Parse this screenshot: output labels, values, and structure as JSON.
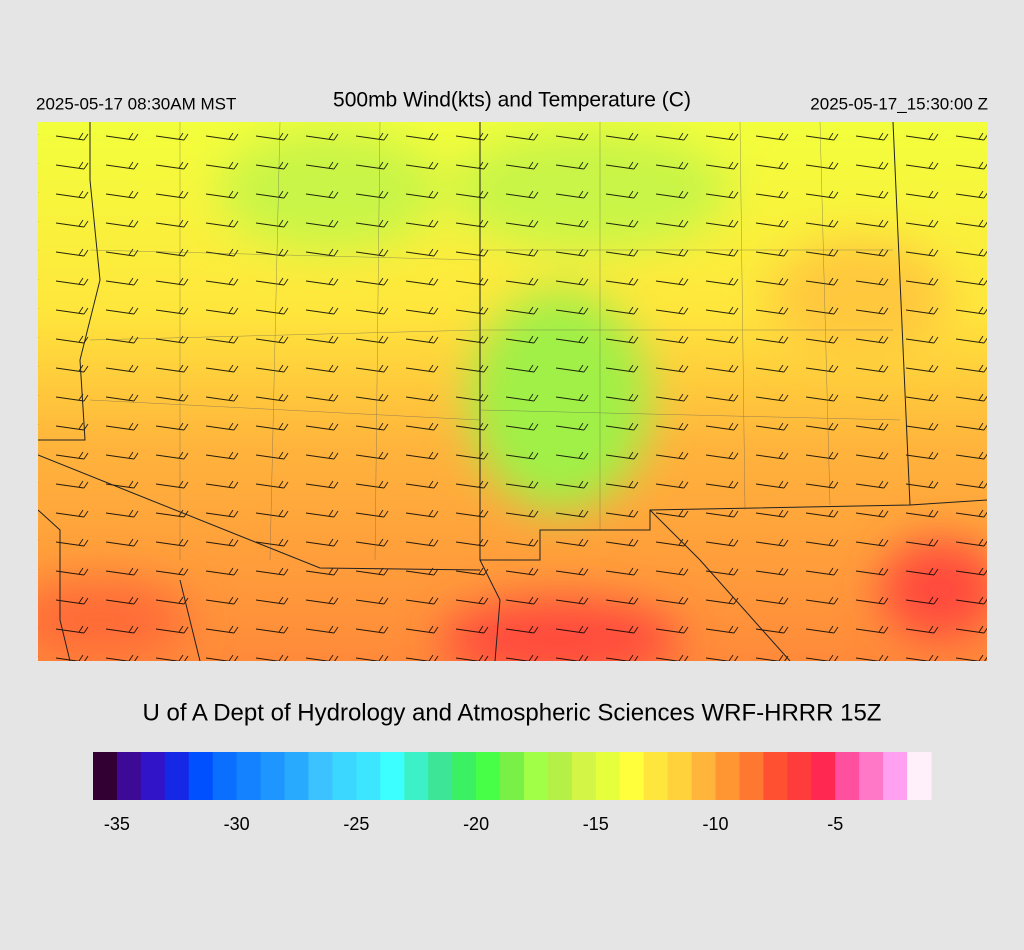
{
  "header": {
    "local_time": "2025-05-17 08:30AM MST",
    "title": "500mb Wind(kts) and Temperature (C)",
    "utc_time": "2025-05-17_15:30:00 Z"
  },
  "footer": {
    "credit": "U of A Dept of Hydrology and Atmospheric Sciences WRF-HRRR 15Z"
  },
  "colorbar": {
    "range": [
      -36,
      -1
    ],
    "ticks": [
      -35,
      -30,
      -25,
      -20,
      -15,
      -10,
      -5
    ],
    "colors": [
      "#330033",
      "#3c0a96",
      "#3214c8",
      "#1428e6",
      "#0050ff",
      "#0a6eff",
      "#1482ff",
      "#1e96ff",
      "#28aaff",
      "#3cc3ff",
      "#3cd7ff",
      "#3ce6ff",
      "#3cffff",
      "#3cf0c8",
      "#3ce696",
      "#3cf064",
      "#46ff46",
      "#78f046",
      "#a0ff46",
      "#b4f046",
      "#d2f546",
      "#e6ff3c",
      "#ffff3c",
      "#ffe63c",
      "#ffd23c",
      "#ffb43c",
      "#ff9632",
      "#ff7832",
      "#ff5032",
      "#ff3c3c",
      "#ff2850",
      "#ff50a0",
      "#ff78c8",
      "#ffa0f0",
      "#fff0fa"
    ]
  }
}
